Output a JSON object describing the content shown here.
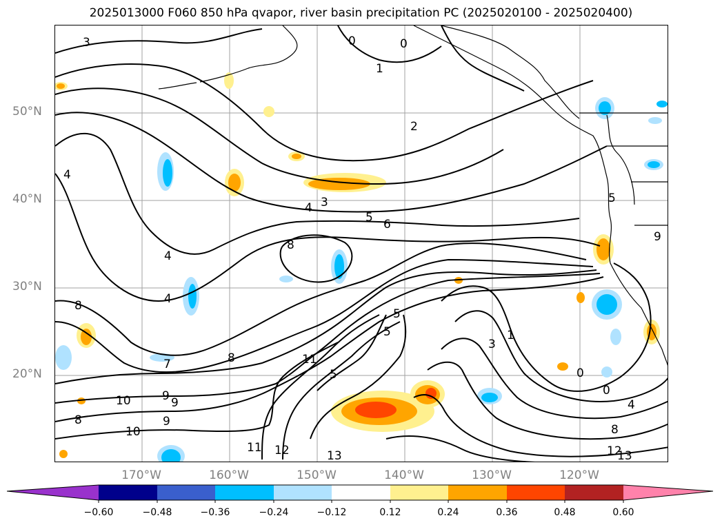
{
  "title": "2025013000 F060 850 hPa qvapor, river basin precipitation PC (2025020100 - 2025020400)",
  "map": {
    "projection": "lat-lon",
    "lon_range": [
      -180,
      -110
    ],
    "lat_range": [
      10,
      60
    ],
    "gridlines": true,
    "lat_ticks": [
      "50°N",
      "40°N",
      "30°N",
      "20°N"
    ],
    "lon_ticks": [
      "170°W",
      "160°W",
      "150°W",
      "140°W",
      "130°W",
      "120°W"
    ],
    "contour_labels": [
      "3",
      "1",
      "2",
      "0",
      "0",
      "4",
      "4",
      "3",
      "5",
      "6",
      "8",
      "4",
      "4",
      "8",
      "7",
      "8",
      "5",
      "5",
      "11",
      "5",
      "3",
      "1",
      "0",
      "0",
      "4",
      "8",
      "9",
      "10",
      "9",
      "8",
      "9",
      "10",
      "11",
      "12",
      "13",
      "12",
      "13",
      "5",
      "9"
    ]
  },
  "colorbar": {
    "colors": [
      "#9932cc",
      "#00008b",
      "#3a5fcd",
      "#00bfff",
      "#b0e2ff",
      "#ffffff",
      "#fff08f",
      "#ffa500",
      "#ff4500",
      "#b22222",
      "#ff82ab"
    ],
    "ticks": [
      "−0.60",
      "−0.48",
      "−0.36",
      "−0.24",
      "−0.12",
      "0.12",
      "0.24",
      "0.36",
      "0.48",
      "0.60"
    ],
    "extend": "both"
  },
  "colors": {
    "contour": "#000000",
    "gridline": "#a0a0a0",
    "tick_label": "#808080"
  }
}
